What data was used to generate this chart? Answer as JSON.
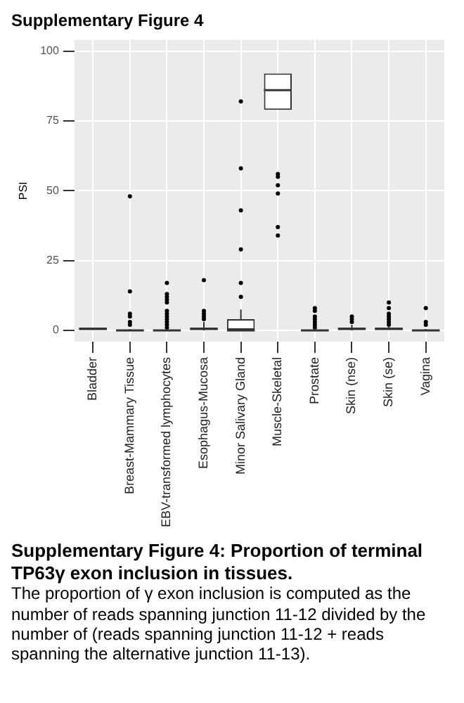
{
  "chart_data": {
    "type": "box",
    "title": "Supplementary Figure 4",
    "ylabel": "PSI",
    "categories": [
      "Bladder",
      "Breast-Mammary Tissue",
      "EBV-transformed lymphocytes",
      "Esophagus-Mucosa",
      "Minor Salivary Gland",
      "Muscle-Skeletal",
      "Prostate",
      "Skin (nse)",
      "Skin (se)",
      "Vagina"
    ],
    "boxes": [
      {
        "low": 0,
        "q1": 0,
        "median": 0.5,
        "q3": 1,
        "high": 1
      },
      {
        "low": 0,
        "q1": 0,
        "median": 0,
        "q3": 0,
        "high": 0.5,
        "outliers": [
          48,
          14,
          6,
          5,
          3,
          2
        ]
      },
      {
        "low": 0,
        "q1": 0,
        "median": 0,
        "q3": 0,
        "high": 0.5,
        "outliers": [
          17,
          13,
          12,
          11,
          10,
          7,
          6,
          5,
          4,
          3,
          2,
          1
        ]
      },
      {
        "low": 0,
        "q1": 0.5,
        "median": 0.5,
        "q3": 1,
        "high": 3,
        "outliers": [
          18,
          7,
          6,
          5,
          4
        ]
      },
      {
        "low": 0,
        "q1": 0,
        "median": 0,
        "q3": 4,
        "high": 7.5,
        "outliers": [
          82,
          58,
          43,
          29,
          17,
          12
        ]
      },
      {
        "low": 79,
        "q1": 79,
        "median": 86,
        "q3": 92,
        "high": 92,
        "outliers": [
          56,
          55,
          52,
          49,
          37,
          34
        ]
      },
      {
        "low": 0,
        "q1": 0,
        "median": 0,
        "q3": 0,
        "high": 0.5,
        "outliers": [
          8,
          7,
          5,
          4,
          3,
          2,
          1
        ]
      },
      {
        "low": 0,
        "q1": 0.5,
        "median": 0.5,
        "q3": 1,
        "high": 2,
        "outliers": [
          5,
          4,
          3
        ]
      },
      {
        "low": 0,
        "q1": 0,
        "median": 0.5,
        "q3": 1,
        "high": 1.5,
        "outliers": [
          10,
          8,
          6,
          5,
          4,
          3,
          2
        ]
      },
      {
        "low": 0,
        "q1": 0,
        "median": 0,
        "q3": 0,
        "high": 0.5,
        "outliers": [
          8,
          3,
          2
        ]
      }
    ],
    "ylim": [
      -4,
      104
    ],
    "yticks": [
      0,
      25,
      50,
      75,
      100
    ],
    "grid": true,
    "annotations": [
      "Supplementary Figure 4: Proportion of terminal TP63γ exon inclusion in tissues.",
      "The proportion of γ exon inclusion is computed as the number of reads spanning junction 11-12 divided by the number of (reads spanning junction 11-12 + reads spanning the alternative junction 11-13)."
    ]
  }
}
